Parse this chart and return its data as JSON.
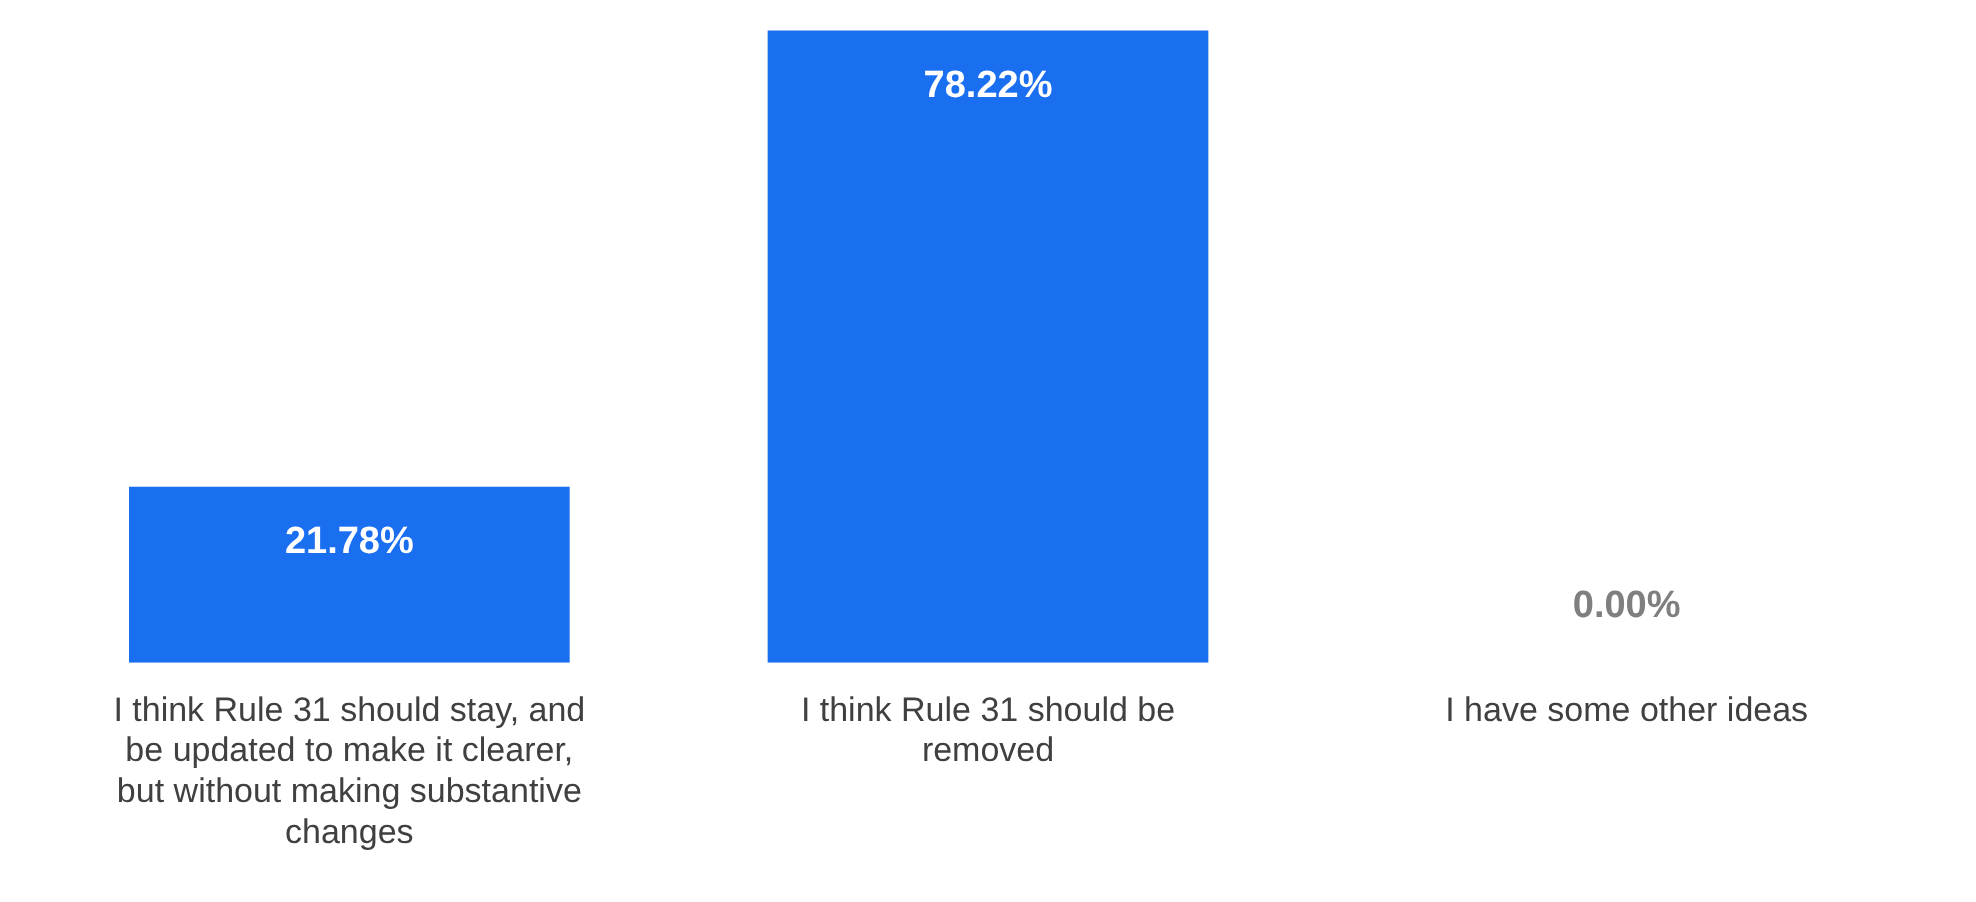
{
  "chart_data": {
    "type": "bar",
    "categories": [
      "I think Rule 31 should stay, and be updated to make it clearer, but without making substantive changes",
      "I think Rule 31 should be removed",
      "I have some other ideas"
    ],
    "values": [
      21.78,
      78.22,
      0
    ],
    "value_labels": [
      "21.78%",
      "78.22%",
      "0.00%"
    ],
    "color": "#1a6ef0",
    "grid": false,
    "legend": false
  }
}
